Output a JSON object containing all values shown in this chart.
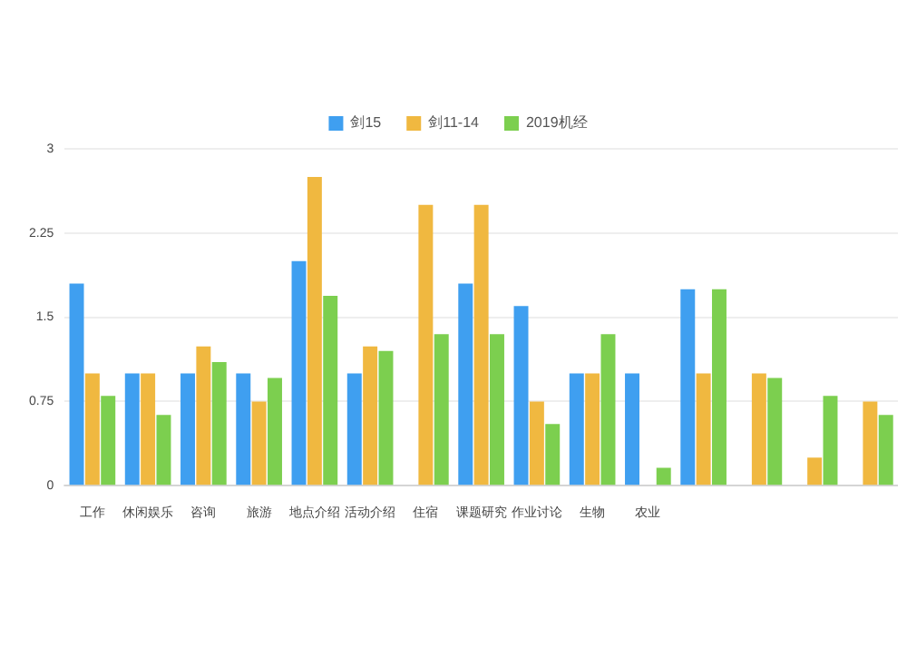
{
  "chart_data": {
    "type": "bar",
    "categories": [
      "工作",
      "休闲娱乐",
      "咨询",
      "旅游",
      "地点介绍",
      "活动介绍",
      "住宿",
      "课题研究",
      "作业讨论",
      "生物",
      "农业",
      null,
      null,
      null,
      null
    ],
    "series": [
      {
        "name": "剑15",
        "color": "#3f9ff0",
        "values": [
          1.8,
          1.0,
          1.0,
          1.0,
          2.0,
          1.0,
          null,
          1.8,
          1.6,
          1.0,
          1.0,
          1.75,
          null,
          null,
          null
        ]
      },
      {
        "name": "剑11-14",
        "color": "#f0b840",
        "values": [
          1.0,
          1.0,
          1.24,
          0.75,
          2.75,
          1.24,
          2.5,
          2.5,
          0.75,
          1.0,
          null,
          1.0,
          1.0,
          0.25,
          0.75
        ]
      },
      {
        "name": "2019机经",
        "color": "#7ccf4f",
        "values": [
          0.8,
          0.63,
          1.1,
          0.96,
          1.69,
          1.2,
          1.35,
          1.35,
          0.55,
          1.35,
          0.16,
          1.75,
          0.96,
          0.8,
          0.63
        ]
      }
    ],
    "ylim": [
      0,
      3
    ],
    "yticks": [
      0,
      0.75,
      1.5,
      2.25,
      3
    ],
    "grid": "y",
    "legend": "top"
  }
}
